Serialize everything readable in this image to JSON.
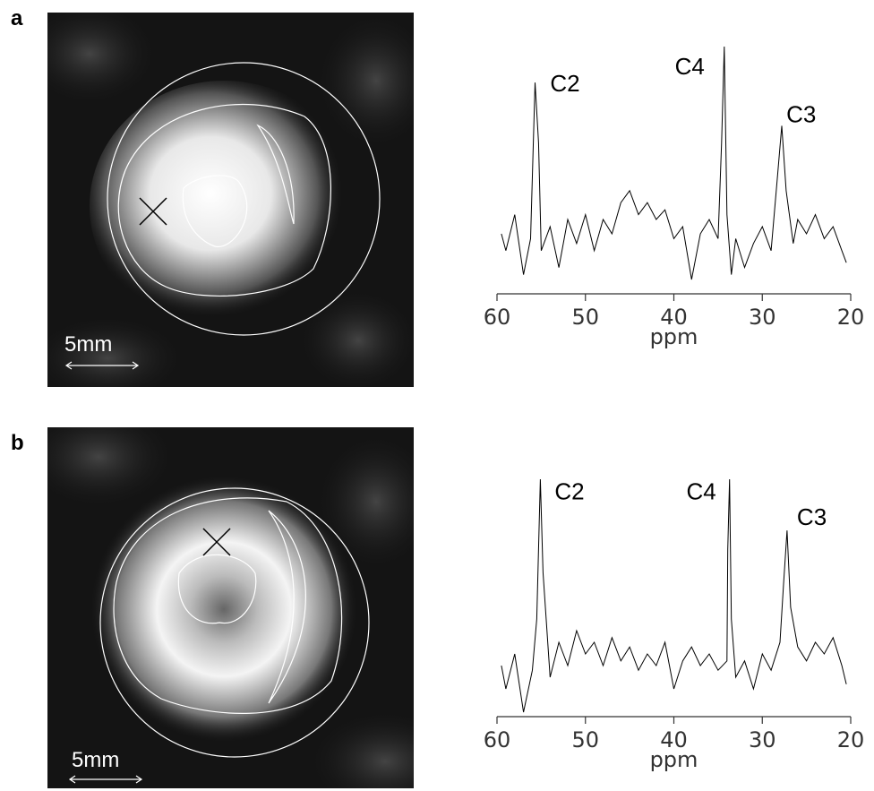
{
  "panels": [
    {
      "label": "a",
      "scale_label": "5mm"
    },
    {
      "label": "b",
      "scale_label": "5mm"
    }
  ],
  "chart_data": [
    {
      "type": "line",
      "xlabel": "ppm",
      "xlim": [
        60,
        20
      ],
      "xticks": [
        60,
        50,
        40,
        30,
        20
      ],
      "ylim": [
        0,
        100
      ],
      "series": [
        {
          "color": "#000000",
          "x": [
            59.5,
            59,
            58,
            57,
            56.2,
            55.7,
            55.3,
            55,
            54,
            53,
            52,
            51,
            50,
            49,
            48,
            47,
            46,
            45,
            44,
            43,
            42,
            41,
            40,
            39,
            38,
            37,
            36,
            35,
            34.6,
            34.3,
            34,
            33.5,
            33,
            32,
            31,
            30,
            29,
            28.3,
            27.8,
            27.3,
            26.5,
            26,
            25,
            24,
            23,
            22,
            21,
            20.5
          ],
          "values": [
            22,
            15,
            30,
            5,
            20,
            85,
            60,
            15,
            25,
            8,
            28,
            18,
            30,
            15,
            28,
            22,
            35,
            40,
            30,
            35,
            28,
            32,
            20,
            25,
            3,
            22,
            28,
            20,
            60,
            100,
            30,
            5,
            20,
            8,
            18,
            25,
            15,
            45,
            67,
            40,
            18,
            28,
            22,
            30,
            20,
            25,
            15,
            10
          ]
        }
      ],
      "annotations": [
        {
          "text": "C2",
          "x": 52.3,
          "y": 84
        },
        {
          "text": "C4",
          "x": 38.2,
          "y": 91
        },
        {
          "text": "C3",
          "x": 25.6,
          "y": 71
        }
      ]
    },
    {
      "type": "line",
      "xlabel": "ppm",
      "xlim": [
        60,
        20
      ],
      "xticks": [
        60,
        50,
        40,
        30,
        20
      ],
      "ylim": [
        0,
        100
      ],
      "series": [
        {
          "color": "#000000",
          "x": [
            59.5,
            59,
            58,
            57,
            56,
            55.5,
            55.1,
            54.8,
            54,
            53,
            52,
            51,
            50,
            49,
            48,
            47,
            46,
            45,
            44,
            43,
            42,
            41,
            40,
            39,
            38,
            37,
            36,
            35,
            34,
            33.9,
            33.7,
            33.5,
            33,
            32,
            31,
            30,
            29,
            28,
            27.6,
            27.2,
            26.8,
            26,
            25,
            24,
            23,
            22,
            21,
            20.5
          ],
          "values": [
            20,
            10,
            25,
            0,
            18,
            40,
            100,
            60,
            15,
            30,
            20,
            35,
            25,
            30,
            20,
            32,
            22,
            28,
            18,
            25,
            20,
            30,
            10,
            22,
            28,
            20,
            25,
            18,
            22,
            70,
            100,
            40,
            15,
            22,
            10,
            25,
            18,
            30,
            55,
            78,
            45,
            28,
            22,
            30,
            25,
            32,
            20,
            12
          ]
        }
      ],
      "annotations": [
        {
          "text": "C2",
          "x": 51.8,
          "y": 94
        },
        {
          "text": "C4",
          "x": 36.9,
          "y": 94
        },
        {
          "text": "C3",
          "x": 24.4,
          "y": 83
        }
      ]
    }
  ]
}
